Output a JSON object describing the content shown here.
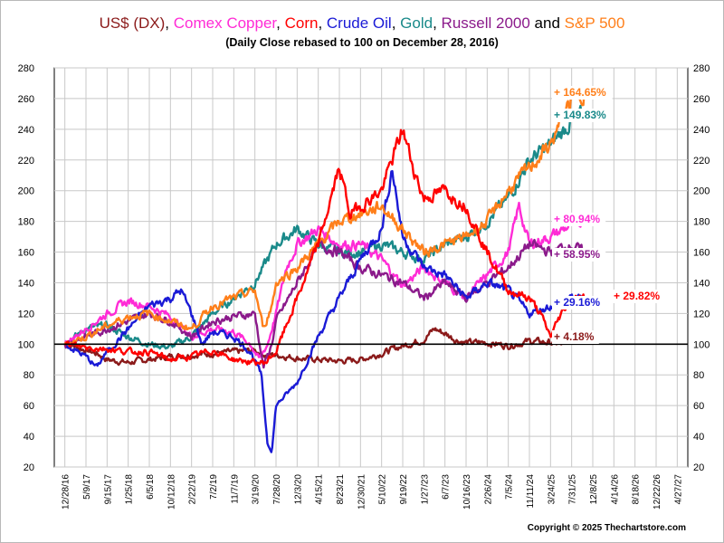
{
  "title_parts": [
    {
      "text": "US$ (DX)",
      "color": "#8b1a1a"
    },
    {
      "text": ", ",
      "color": "#000000"
    },
    {
      "text": "Comex Copper",
      "color": "#ff2bd6"
    },
    {
      "text": ", ",
      "color": "#000000"
    },
    {
      "text": "Corn",
      "color": "#ff0000"
    },
    {
      "text": ", ",
      "color": "#000000"
    },
    {
      "text": "Crude Oil",
      "color": "#1a1ad6"
    },
    {
      "text": ", ",
      "color": "#000000"
    },
    {
      "text": "Gold",
      "color": "#1a8a8a"
    },
    {
      "text": ", ",
      "color": "#000000"
    },
    {
      "text": "Russell 2000",
      "color": "#8b1a8b"
    },
    {
      "text": " and ",
      "color": "#000000"
    },
    {
      "text": "S&P 500",
      "color": "#ff7f1a"
    }
  ],
  "subtitle": "(Daily Close rebased to 100 on December 28, 2016)",
  "credit": "Copyright © 2025 Thechartstore.com",
  "chart_data": {
    "type": "line",
    "ylim": [
      20,
      280
    ],
    "yticks": [
      20,
      40,
      60,
      80,
      100,
      120,
      140,
      160,
      180,
      200,
      220,
      240,
      260,
      280
    ],
    "baseline": 100,
    "grid": true,
    "xticks": [
      "12/28/16",
      "5/9/17",
      "9/15/17",
      "1/25/18",
      "6/5/18",
      "10/12/18",
      "2/22/19",
      "7/2/19",
      "11/7/19",
      "3/19/20",
      "7/28/20",
      "12/3/20",
      "4/15/21",
      "8/23/21",
      "12/30/21",
      "5/10/22",
      "9/19/22",
      "1/27/23",
      "6/7/23",
      "10/16/23",
      "2/26/24",
      "7/5/24",
      "11/11/24",
      "3/24/25",
      "7/31/25",
      "12/8/25",
      "4/14/26",
      "8/18/26",
      "12/22/26",
      "4/27/27"
    ],
    "series": [
      {
        "name": "US$ (DX)",
        "color": "#8b1a1a",
        "end_label": "+ 4.18%",
        "points": [
          [
            0,
            100
          ],
          [
            0.4,
            99
          ],
          [
            1,
            96
          ],
          [
            1.5,
            94
          ],
          [
            2,
            90
          ],
          [
            2.5,
            89
          ],
          [
            3,
            88
          ],
          [
            4,
            90
          ],
          [
            5,
            92
          ],
          [
            6,
            93
          ],
          [
            7,
            94
          ],
          [
            8,
            95
          ],
          [
            9,
            96
          ],
          [
            9.5,
            93
          ],
          [
            10,
            93
          ],
          [
            11,
            91
          ],
          [
            12,
            90
          ],
          [
            13,
            89
          ],
          [
            14,
            90
          ],
          [
            15,
            94
          ],
          [
            16,
            99
          ],
          [
            17,
            103
          ],
          [
            17.5,
            110
          ],
          [
            18,
            107
          ],
          [
            18.5,
            103
          ],
          [
            19,
            101
          ],
          [
            20,
            101
          ],
          [
            21,
            99
          ],
          [
            22,
            102
          ],
          [
            23,
            101
          ],
          [
            23.5,
            100
          ],
          [
            24,
            105
          ],
          [
            24.6,
            104
          ]
        ]
      },
      {
        "name": "Comex Copper",
        "color": "#ff2bd6",
        "end_label": "+ 80.94%",
        "points": [
          [
            0,
            100
          ],
          [
            1,
            110
          ],
          [
            2,
            120
          ],
          [
            3,
            128
          ],
          [
            4,
            125
          ],
          [
            5,
            118
          ],
          [
            6,
            105
          ],
          [
            7,
            110
          ],
          [
            8,
            108
          ],
          [
            8.8,
            100
          ],
          [
            9.2,
            90
          ],
          [
            9.6,
            100
          ],
          [
            10,
            120
          ],
          [
            10.5,
            150
          ],
          [
            11,
            165
          ],
          [
            12,
            175
          ],
          [
            13,
            165
          ],
          [
            14,
            165
          ],
          [
            15,
            155
          ],
          [
            16,
            138
          ],
          [
            17,
            150
          ],
          [
            18,
            140
          ],
          [
            19,
            130
          ],
          [
            20,
            145
          ],
          [
            21,
            160
          ],
          [
            21.5,
            190
          ],
          [
            22,
            165
          ],
          [
            23,
            170
          ],
          [
            24,
            178
          ],
          [
            24.6,
            181
          ]
        ]
      },
      {
        "name": "Corn",
        "color": "#ff0000",
        "end_label": "+ 29.82%",
        "points": [
          [
            0,
            100
          ],
          [
            1,
            98
          ],
          [
            2,
            97
          ],
          [
            3,
            95
          ],
          [
            4,
            95
          ],
          [
            5,
            90
          ],
          [
            6,
            92
          ],
          [
            7,
            96
          ],
          [
            8,
            90
          ],
          [
            9,
            88
          ],
          [
            9.5,
            88
          ],
          [
            10,
            95
          ],
          [
            11,
            130
          ],
          [
            12,
            165
          ],
          [
            13,
            215
          ],
          [
            13.5,
            185
          ],
          [
            14,
            190
          ],
          [
            15,
            200
          ],
          [
            16,
            240
          ],
          [
            16.5,
            215
          ],
          [
            17,
            195
          ],
          [
            18,
            200
          ],
          [
            19,
            190
          ],
          [
            20,
            160
          ],
          [
            21,
            135
          ],
          [
            22,
            130
          ],
          [
            22.5,
            120
          ],
          [
            23,
            105
          ],
          [
            23.5,
            120
          ],
          [
            24,
            130
          ],
          [
            24.6,
            130
          ]
        ]
      },
      {
        "name": "Crude Oil",
        "color": "#1a1ad6",
        "end_label": "+ 29.16%",
        "points": [
          [
            0,
            100
          ],
          [
            1,
            92
          ],
          [
            1.5,
            85
          ],
          [
            2,
            95
          ],
          [
            3,
            110
          ],
          [
            4,
            125
          ],
          [
            5,
            130
          ],
          [
            5.5,
            135
          ],
          [
            6,
            120
          ],
          [
            6.5,
            100
          ],
          [
            7,
            108
          ],
          [
            8,
            105
          ],
          [
            8.8,
            95
          ],
          [
            9.3,
            80
          ],
          [
            9.6,
            35
          ],
          [
            9.8,
            30
          ],
          [
            10,
            60
          ],
          [
            11,
            75
          ],
          [
            12,
            105
          ],
          [
            13,
            130
          ],
          [
            14,
            155
          ],
          [
            15,
            175
          ],
          [
            15.5,
            215
          ],
          [
            16,
            170
          ],
          [
            17,
            150
          ],
          [
            18,
            145
          ],
          [
            19,
            130
          ],
          [
            20,
            140
          ],
          [
            21,
            135
          ],
          [
            22,
            120
          ],
          [
            23,
            125
          ],
          [
            24,
            130
          ],
          [
            24.6,
            129
          ]
        ]
      },
      {
        "name": "Gold",
        "color": "#1a8a8a",
        "end_label": "+ 149.83%",
        "points": [
          [
            0,
            100
          ],
          [
            1,
            110
          ],
          [
            2,
            112
          ],
          [
            3,
            105
          ],
          [
            4,
            100
          ],
          [
            5,
            98
          ],
          [
            6,
            105
          ],
          [
            7,
            120
          ],
          [
            8,
            130
          ],
          [
            9,
            140
          ],
          [
            10,
            165
          ],
          [
            11,
            175
          ],
          [
            12,
            165
          ],
          [
            13,
            160
          ],
          [
            14,
            160
          ],
          [
            15,
            165
          ],
          [
            16,
            160
          ],
          [
            17,
            155
          ],
          [
            18,
            165
          ],
          [
            19,
            170
          ],
          [
            20,
            180
          ],
          [
            21,
            195
          ],
          [
            22,
            220
          ],
          [
            23,
            230
          ],
          [
            24,
            245
          ],
          [
            24.6,
            250
          ]
        ]
      },
      {
        "name": "Russell 2000",
        "color": "#8b1a8b",
        "end_label": "+ 58.95%",
        "points": [
          [
            0,
            100
          ],
          [
            1,
            105
          ],
          [
            2,
            110
          ],
          [
            3,
            115
          ],
          [
            4,
            120
          ],
          [
            5,
            115
          ],
          [
            6,
            105
          ],
          [
            7,
            115
          ],
          [
            8,
            118
          ],
          [
            9,
            120
          ],
          [
            9.4,
            85
          ],
          [
            9.8,
            100
          ],
          [
            10,
            115
          ],
          [
            11,
            140
          ],
          [
            12,
            165
          ],
          [
            13,
            160
          ],
          [
            14,
            150
          ],
          [
            15,
            145
          ],
          [
            16,
            140
          ],
          [
            17,
            130
          ],
          [
            18,
            140
          ],
          [
            19,
            130
          ],
          [
            20,
            140
          ],
          [
            21,
            150
          ],
          [
            22,
            165
          ],
          [
            23,
            160
          ],
          [
            24,
            165
          ],
          [
            24.6,
            159
          ]
        ]
      },
      {
        "name": "S&P 500",
        "color": "#ff7f1a",
        "end_label": "+ 164.65%",
        "points": [
          [
            0,
            100
          ],
          [
            1,
            105
          ],
          [
            2,
            112
          ],
          [
            3,
            118
          ],
          [
            4,
            120
          ],
          [
            5,
            115
          ],
          [
            6,
            110
          ],
          [
            7,
            125
          ],
          [
            8,
            130
          ],
          [
            9,
            135
          ],
          [
            9.4,
            110
          ],
          [
            9.8,
            125
          ],
          [
            10,
            140
          ],
          [
            11,
            150
          ],
          [
            12,
            165
          ],
          [
            13,
            180
          ],
          [
            14,
            185
          ],
          [
            15,
            190
          ],
          [
            16,
            175
          ],
          [
            17,
            160
          ],
          [
            18,
            165
          ],
          [
            19,
            170
          ],
          [
            20,
            180
          ],
          [
            21,
            200
          ],
          [
            22,
            215
          ],
          [
            23,
            230
          ],
          [
            24,
            260
          ],
          [
            24.6,
            265
          ]
        ]
      }
    ]
  }
}
